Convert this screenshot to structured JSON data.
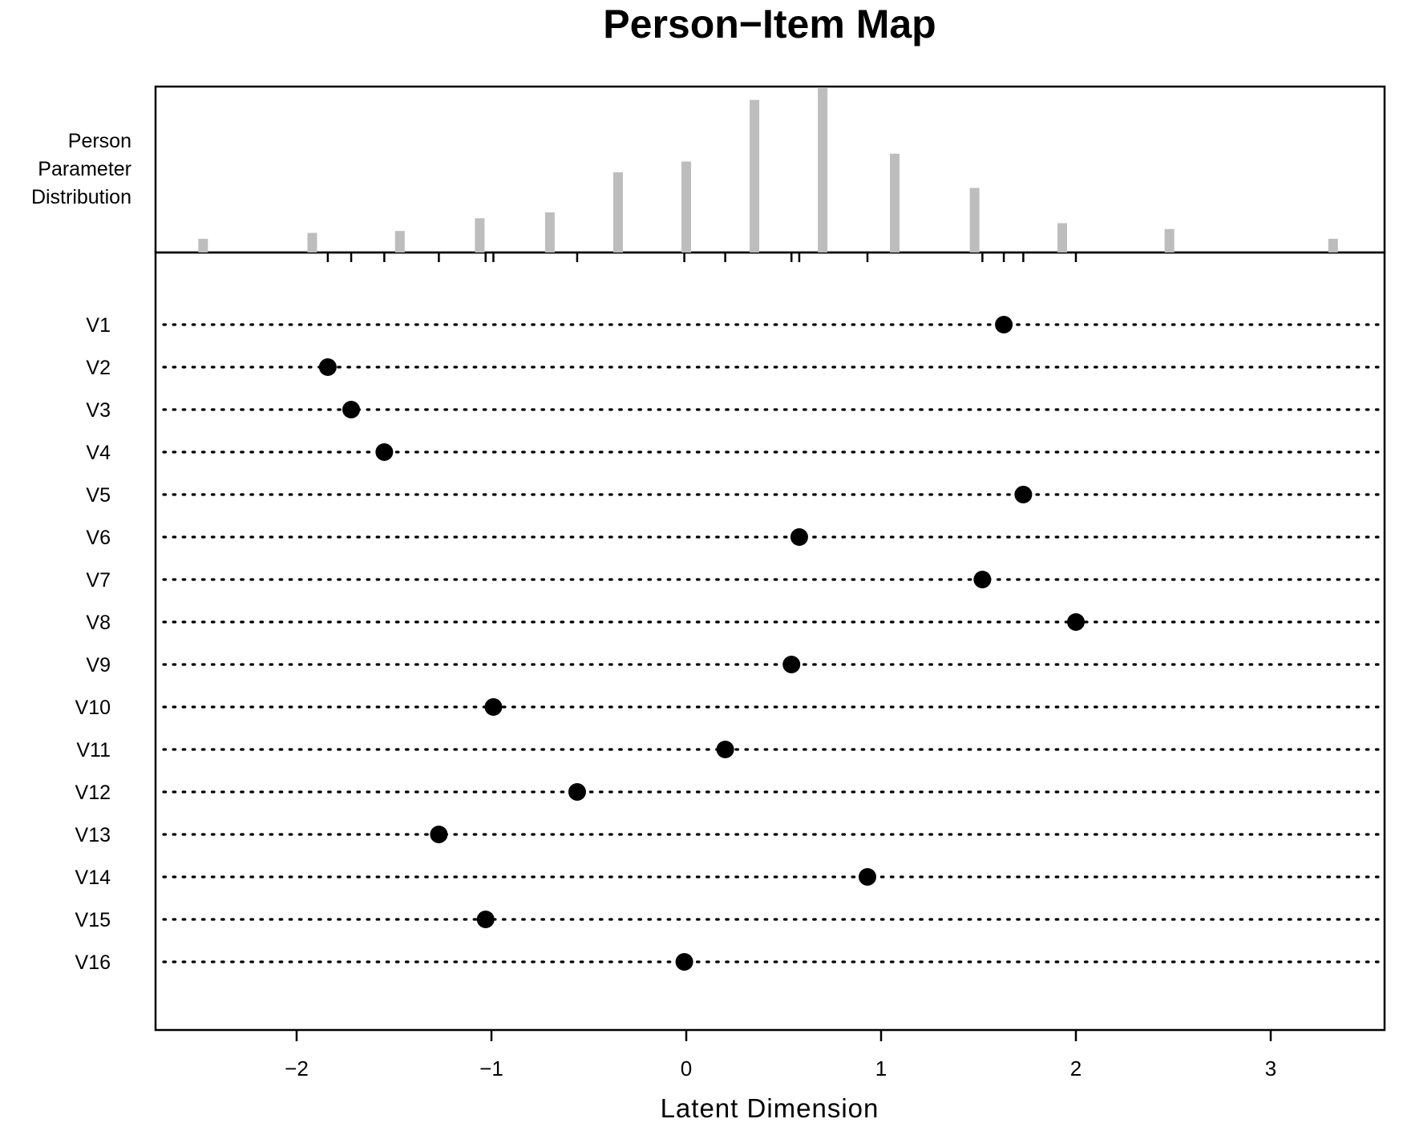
{
  "chart_data": {
    "type": "person-item-map",
    "title": "Person−Item Map",
    "xlabel": "Latent Dimension",
    "person_label_lines": [
      "Person",
      "Parameter",
      "Distribution"
    ],
    "xlim": [
      -2.7,
      3.6
    ],
    "x_ticks": [
      -2,
      -1,
      0,
      1,
      2,
      3
    ],
    "x_tick_labels": [
      "−2",
      "−1",
      "0",
      "1",
      "2",
      "3"
    ],
    "grid": false,
    "bar_color": "#bdbdbd",
    "person_distribution": {
      "x": [
        -2.48,
        -1.92,
        -1.47,
        -1.06,
        -0.7,
        -0.35,
        0.0,
        0.35,
        0.7,
        1.07,
        1.48,
        1.93,
        2.48,
        3.32
      ],
      "counts": [
        1.4,
        2.0,
        2.2,
        3.5,
        4.1,
        8.2,
        9.3,
        15.6,
        16.8,
        10.1,
        6.6,
        3.0,
        2.4,
        1.4
      ]
    },
    "items": [
      {
        "label": "V1",
        "value": 1.63
      },
      {
        "label": "V2",
        "value": -1.84
      },
      {
        "label": "V3",
        "value": -1.72
      },
      {
        "label": "V4",
        "value": -1.55
      },
      {
        "label": "V5",
        "value": 1.73
      },
      {
        "label": "V6",
        "value": 0.58
      },
      {
        "label": "V7",
        "value": 1.52
      },
      {
        "label": "V8",
        "value": 2.0
      },
      {
        "label": "V9",
        "value": 0.54
      },
      {
        "label": "V10",
        "value": -0.99
      },
      {
        "label": "V11",
        "value": 0.2
      },
      {
        "label": "V12",
        "value": -0.56
      },
      {
        "label": "V13",
        "value": -1.27
      },
      {
        "label": "V14",
        "value": 0.93
      },
      {
        "label": "V15",
        "value": -1.03
      },
      {
        "label": "V16",
        "value": -0.01
      }
    ]
  }
}
